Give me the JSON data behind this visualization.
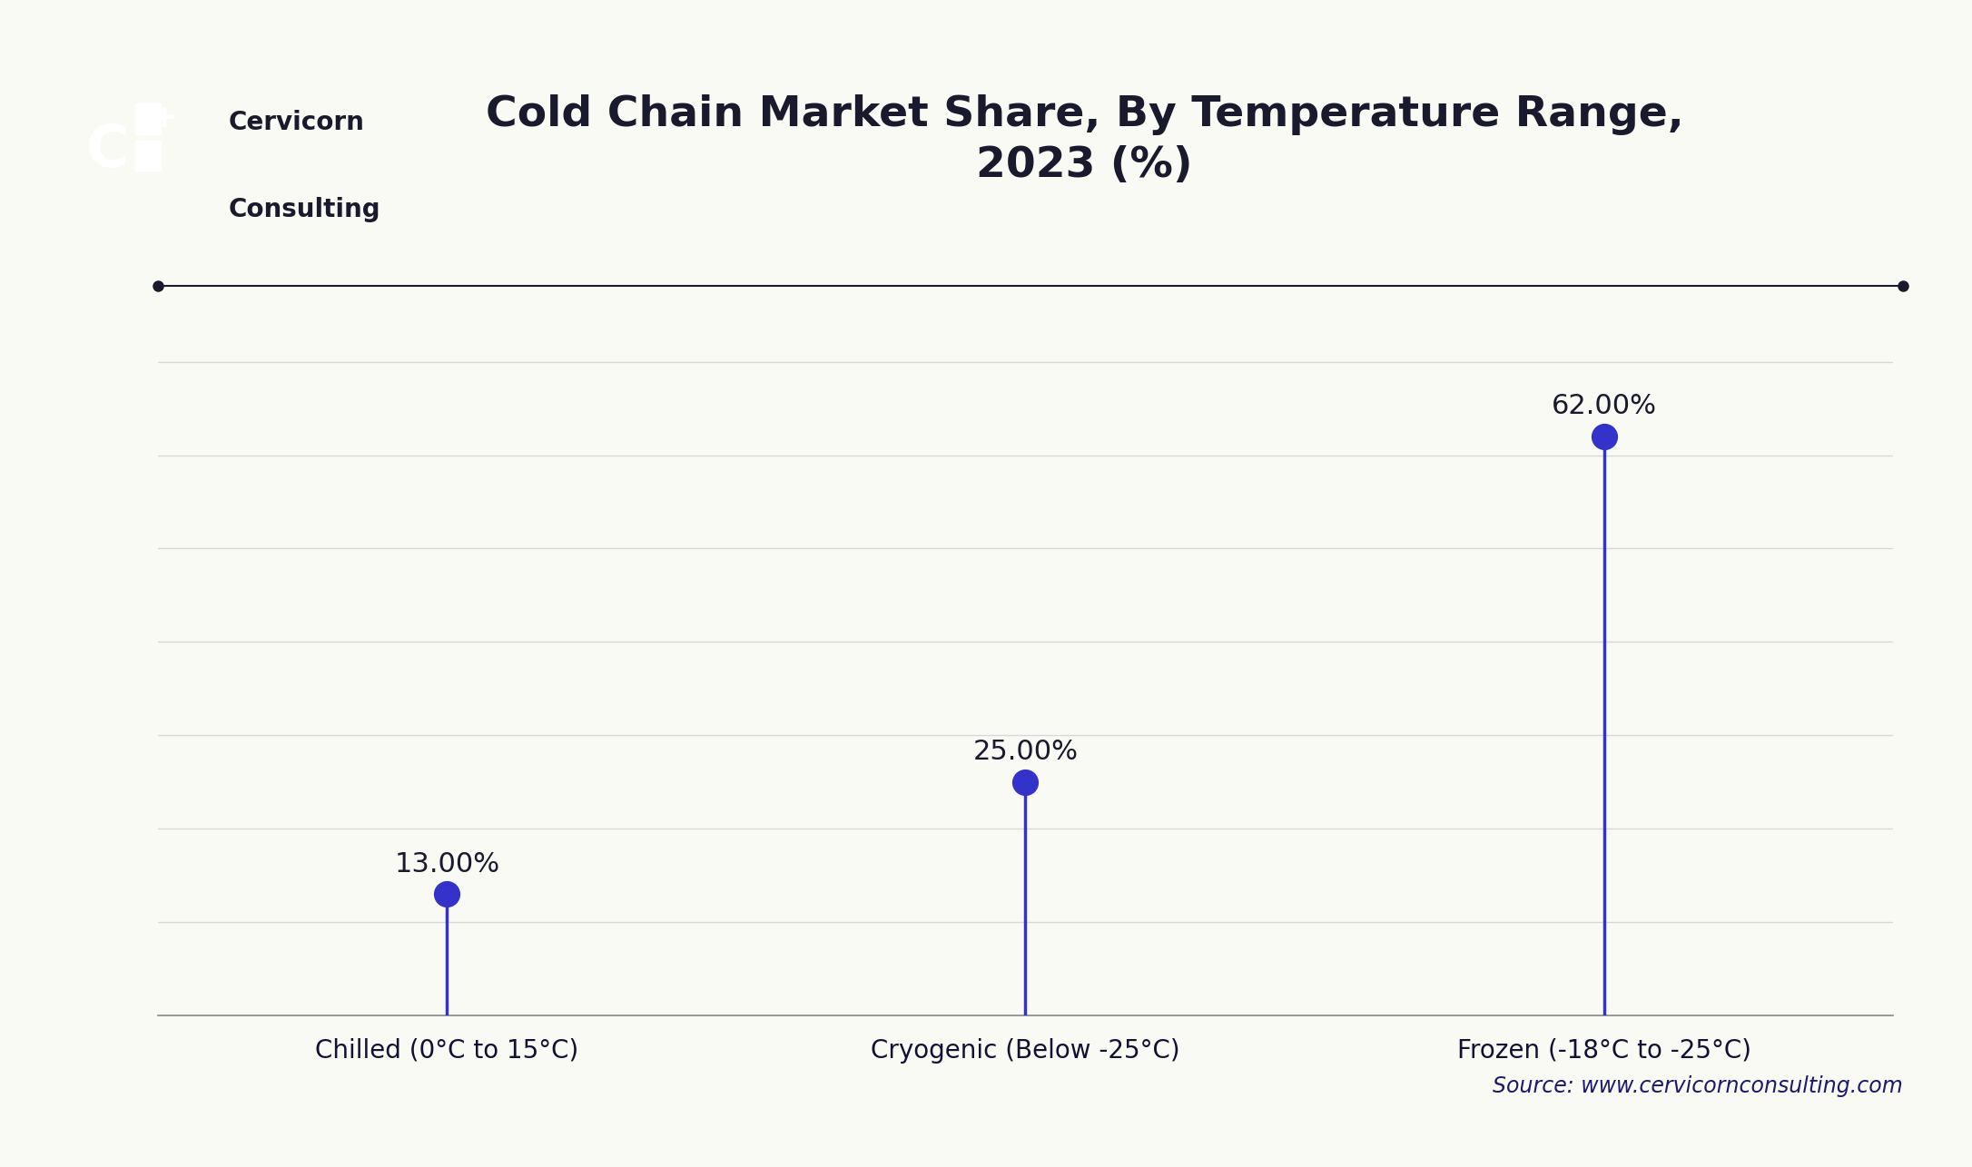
{
  "title": "Cold Chain Market Share, By Temperature Range,\n2023 (%)",
  "categories": [
    "Chilled (0°C to 15°C)",
    "Cryogenic (Below -25°C)",
    "Frozen (-18°C to -25°C)"
  ],
  "values": [
    13.0,
    25.0,
    62.0
  ],
  "labels": [
    "13.00%",
    "25.00%",
    "62.00%"
  ],
  "stem_color": "#3333cc",
  "marker_color": "#3333cc",
  "title_color": "#1a1a2e",
  "axis_label_color": "#111133",
  "background_color": "#fafaf5",
  "grid_color": "#d8d8d8",
  "source_text": "Source: www.cervicornconsulting.com",
  "source_color": "#1a1a6e",
  "ylim": [
    0,
    75
  ],
  "yticks": [
    0,
    10,
    20,
    30,
    40,
    50,
    60,
    70
  ],
  "title_fontsize": 34,
  "label_fontsize": 22,
  "tick_fontsize": 20,
  "source_fontsize": 17,
  "marker_size": 20,
  "line_width": 2.5,
  "separator_color": "#1a1a2e",
  "logo_box_color": "#1a3a7a",
  "logo_text_color": "#ffffff",
  "cervicorn_fontsize": 20
}
